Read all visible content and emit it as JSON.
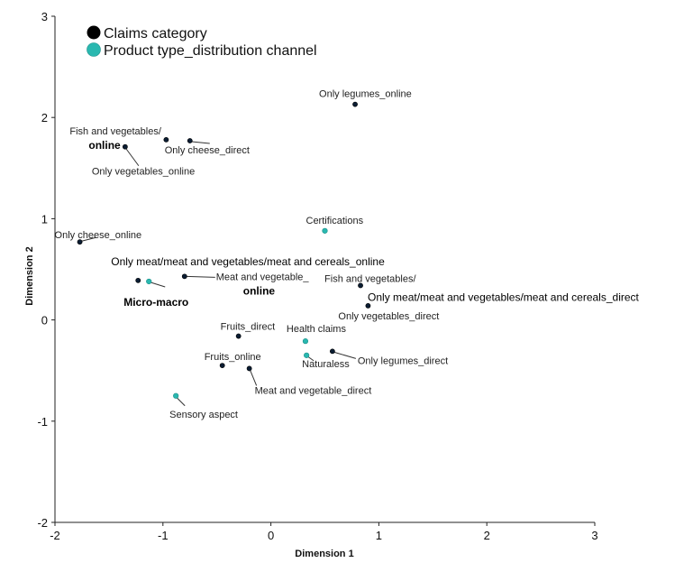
{
  "chart_data": {
    "type": "scatter",
    "title": "",
    "xlabel": "Dimension 1",
    "ylabel": "Dimension 2",
    "xlim": [
      -2,
      3
    ],
    "ylim": [
      -2,
      3
    ],
    "xticks": [
      "-2",
      "-1",
      "0",
      "1",
      "2",
      "3"
    ],
    "yticks": [
      "-2",
      "-1",
      "0",
      "1",
      "2",
      "3"
    ],
    "grid": false,
    "legend_position": "top-left",
    "series": [
      {
        "name": "Claims category",
        "color": "#0b1d33",
        "points": [
          {
            "x": -0.97,
            "y": 1.78,
            "label_lines": [
              "Fish and vegetables/",
              "online"
            ]
          },
          {
            "x": -0.75,
            "y": 1.77,
            "label_lines": [
              "Only cheese_direct"
            ]
          },
          {
            "x": -1.35,
            "y": 1.71,
            "label_lines": [
              "Only vegetables_online"
            ]
          },
          {
            "x": 0.78,
            "y": 2.13,
            "label_lines": [
              "Only legumes_online"
            ]
          },
          {
            "x": -1.77,
            "y": 0.77,
            "label_lines": [
              "Only cheese_online"
            ]
          },
          {
            "x": -1.23,
            "y": 0.39,
            "label_lines": [
              "Only meat/meat and vegetables/meat and cereals_online"
            ]
          },
          {
            "x": -0.8,
            "y": 0.43,
            "label_lines": [
              "Meat and vegetable_",
              "online"
            ]
          },
          {
            "x": 0.83,
            "y": 0.34,
            "label_lines": [
              "Fish and vegetables/",
              "Only meat/meat and vegetables/meat and cereals_direct"
            ]
          },
          {
            "x": 0.9,
            "y": 0.14,
            "label_lines": [
              "Only vegetables_direct"
            ]
          },
          {
            "x": -0.3,
            "y": -0.16,
            "label_lines": [
              "Fruits_direct"
            ]
          },
          {
            "x": -0.45,
            "y": -0.45,
            "label_lines": [
              "Fruits_online"
            ]
          },
          {
            "x": -0.2,
            "y": -0.48,
            "label_lines": [
              "Meat and vegetable_direct"
            ]
          },
          {
            "x": 0.57,
            "y": -0.31,
            "label_lines": [
              "Only legumes_direct"
            ]
          }
        ]
      },
      {
        "name": "Product type_distribution channel",
        "color": "#2ab8b0",
        "points": [
          {
            "x": 0.5,
            "y": 0.88,
            "label_lines": [
              "Certifications"
            ]
          },
          {
            "x": -1.13,
            "y": 0.38,
            "label_lines": [
              "Micro-macro"
            ]
          },
          {
            "x": 0.32,
            "y": -0.21,
            "label_lines": [
              "Health claims"
            ]
          },
          {
            "x": 0.33,
            "y": -0.35,
            "label_lines": [
              "Naturaless"
            ]
          },
          {
            "x": -0.88,
            "y": -0.75,
            "label_lines": [
              "Sensory aspect"
            ]
          }
        ]
      }
    ]
  }
}
